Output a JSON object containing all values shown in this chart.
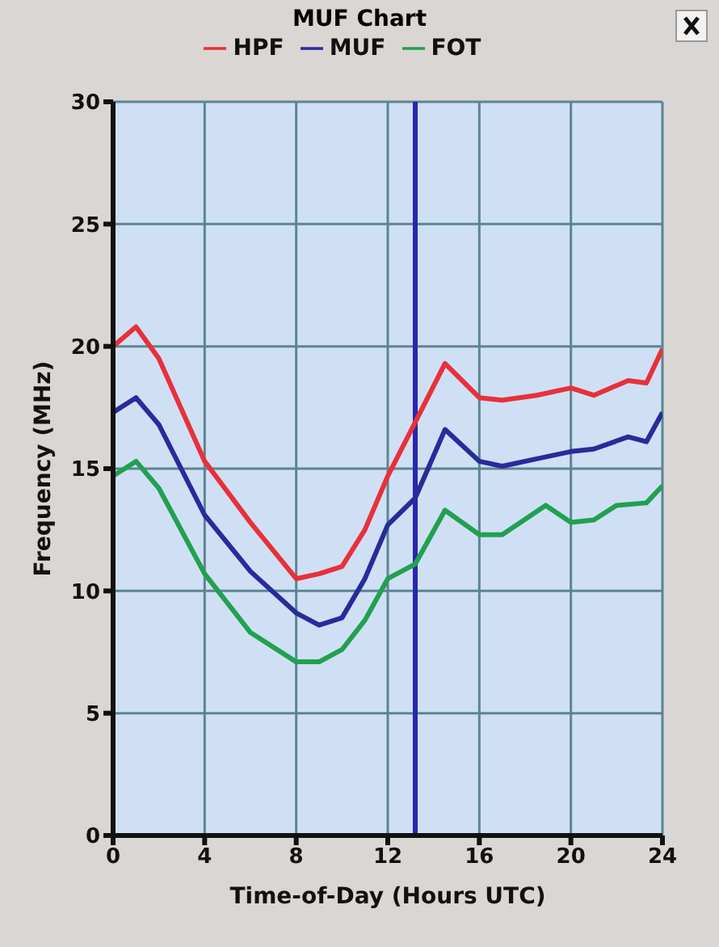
{
  "chart_data": {
    "type": "line",
    "title": "MUF Chart",
    "xlabel": "Time-of-Day (Hours UTC)",
    "ylabel": "Frequency (MHz)",
    "xlim": [
      0,
      24
    ],
    "xticks": [
      0,
      4,
      8,
      12,
      16,
      20,
      24
    ],
    "ylim": [
      0,
      30
    ],
    "yticks": [
      0,
      5,
      10,
      15,
      20,
      25,
      30
    ],
    "grid": true,
    "legend": "top",
    "line_style": "solid",
    "marker": "none",
    "ref_lines": [
      {
        "axis": "x",
        "value": 13.2,
        "color": "#2626b0"
      }
    ],
    "series": [
      {
        "name": "HPF",
        "color": "#e8303a",
        "x": [
          0,
          1,
          2,
          4,
          6,
          8,
          9,
          10,
          11,
          12,
          13.2,
          14.5,
          16,
          17,
          18.5,
          20,
          21,
          22.5,
          23.3,
          24
        ],
        "values": [
          20,
          20.8,
          19.5,
          15.3,
          12.8,
          10.5,
          10.7,
          11,
          12.5,
          14.7,
          16.9,
          19.3,
          17.9,
          17.8,
          18,
          18.3,
          18,
          18.6,
          18.5,
          19.9
        ]
      },
      {
        "name": "MUF",
        "color": "#2a2a9a",
        "x": [
          0,
          1,
          2,
          4,
          6,
          8,
          9,
          10,
          11,
          12,
          13.2,
          14.5,
          16,
          17,
          18.5,
          20,
          21,
          22.5,
          23.3,
          24
        ],
        "values": [
          17.3,
          17.9,
          16.8,
          13.1,
          10.8,
          9.1,
          8.6,
          8.9,
          10.5,
          12.7,
          13.8,
          16.6,
          15.3,
          15.1,
          15.4,
          15.7,
          15.8,
          16.3,
          16.1,
          17.3
        ]
      },
      {
        "name": "FOT",
        "color": "#22a050",
        "x": [
          0,
          1,
          2,
          4,
          6,
          8,
          9,
          10,
          11,
          12,
          13.2,
          14.5,
          16,
          17,
          18.9,
          20,
          21,
          22,
          23.3,
          24
        ],
        "values": [
          14.7,
          15.3,
          14.2,
          10.7,
          8.3,
          7.1,
          7.1,
          7.6,
          8.8,
          10.5,
          11.1,
          13.3,
          12.3,
          12.3,
          13.5,
          12.8,
          12.9,
          13.5,
          13.6,
          14.3
        ]
      }
    ]
  }
}
